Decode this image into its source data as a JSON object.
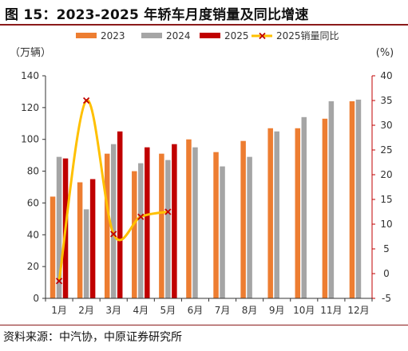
{
  "header": {
    "title": "图 15：2023-2025 年轿车月度销量及同比增速"
  },
  "footer": {
    "source": "资料来源：中汽协，中原证券研究所"
  },
  "chart_data": {
    "type": "bar",
    "categories": [
      "1月",
      "2月",
      "3月",
      "4月",
      "5月",
      "6月",
      "7月",
      "8月",
      "9月",
      "10月",
      "11月",
      "12月"
    ],
    "series": [
      {
        "name": "2023",
        "type": "bar",
        "color": "#ed7d31",
        "values": [
          64,
          73,
          91,
          80,
          91,
          100,
          92,
          99,
          107,
          107,
          113,
          124
        ]
      },
      {
        "name": "2024",
        "type": "bar",
        "color": "#a5a5a5",
        "values": [
          89,
          56,
          97,
          85,
          87,
          95,
          83,
          89,
          105,
          114,
          124,
          125
        ]
      },
      {
        "name": "2025",
        "type": "bar",
        "color": "#c00000",
        "values": [
          88,
          75,
          105,
          95,
          97,
          null,
          null,
          null,
          null,
          null,
          null,
          null
        ]
      },
      {
        "name": "2025销量同比",
        "type": "line",
        "axis": "right",
        "color": "#ffc000",
        "marker_color": "#c00000",
        "values": [
          -1.5,
          35,
          8,
          11.5,
          12.5,
          null,
          null,
          null,
          null,
          null,
          null,
          null
        ]
      }
    ],
    "left_axis": {
      "label": "（万辆）",
      "min": 0,
      "max": 140,
      "ticks": [
        "0",
        "20",
        "40",
        "60",
        "80",
        "100",
        "120",
        "140"
      ]
    },
    "right_axis": {
      "label": "(%)",
      "min": -5,
      "max": 40,
      "ticks": [
        "-5",
        "0",
        "5",
        "10",
        "15",
        "20",
        "25",
        "30",
        "35",
        "40"
      ]
    },
    "grid": false,
    "legend_position": "top"
  }
}
